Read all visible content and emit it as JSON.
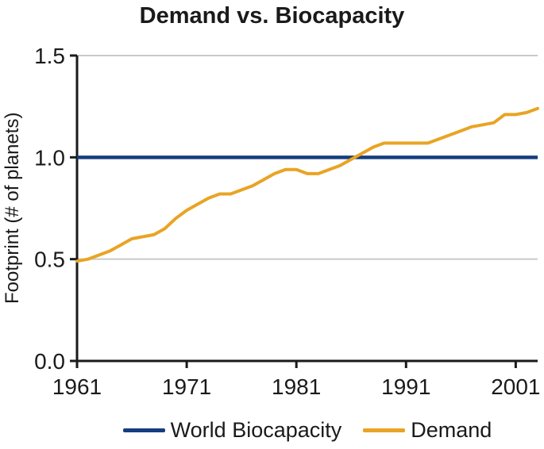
{
  "title": "Demand vs. Biocapacity",
  "ylabel": "Footprint (# of planets)",
  "colors": {
    "biocapacity": "#153E7E",
    "demand": "#E9A424",
    "gridline": "#C9C9C9",
    "axis": "#1A1A1A",
    "background": "#FFFFFF",
    "text": "#1A1A1A"
  },
  "legend": {
    "items": [
      {
        "label": "World Biocapacity",
        "color": "#153E7E"
      },
      {
        "label": "Demand",
        "color": "#E9A424"
      }
    ]
  },
  "chart_data": {
    "type": "line",
    "title": "Demand vs. Biocapacity",
    "xlabel": "",
    "ylabel": "Footprint (# of planets)",
    "xlim": [
      1961,
      2003
    ],
    "ylim": [
      0.0,
      1.5
    ],
    "xticks": [
      "1961",
      "1971",
      "1981",
      "1991",
      "2001"
    ],
    "yticks": [
      "0.0",
      "0.5",
      "1.0",
      "1.5"
    ],
    "grid": "horizontal",
    "legend_position": "bottom",
    "x": [
      1961,
      1962,
      1963,
      1964,
      1965,
      1966,
      1967,
      1968,
      1969,
      1970,
      1971,
      1972,
      1973,
      1974,
      1975,
      1976,
      1977,
      1978,
      1979,
      1980,
      1981,
      1982,
      1983,
      1984,
      1985,
      1986,
      1987,
      1988,
      1989,
      1990,
      1991,
      1992,
      1993,
      1994,
      1995,
      1996,
      1997,
      1998,
      1999,
      2000,
      2001,
      2002,
      2003
    ],
    "series": [
      {
        "name": "World Biocapacity",
        "type": "constant",
        "value": 1.0
      },
      {
        "name": "Demand",
        "values": [
          0.49,
          0.5,
          0.52,
          0.54,
          0.57,
          0.6,
          0.61,
          0.62,
          0.65,
          0.7,
          0.74,
          0.77,
          0.8,
          0.82,
          0.82,
          0.84,
          0.86,
          0.89,
          0.92,
          0.94,
          0.94,
          0.92,
          0.92,
          0.94,
          0.96,
          0.99,
          1.02,
          1.05,
          1.07,
          1.07,
          1.07,
          1.07,
          1.07,
          1.09,
          1.11,
          1.13,
          1.15,
          1.16,
          1.17,
          1.21,
          1.21,
          1.22,
          1.24
        ]
      }
    ]
  }
}
